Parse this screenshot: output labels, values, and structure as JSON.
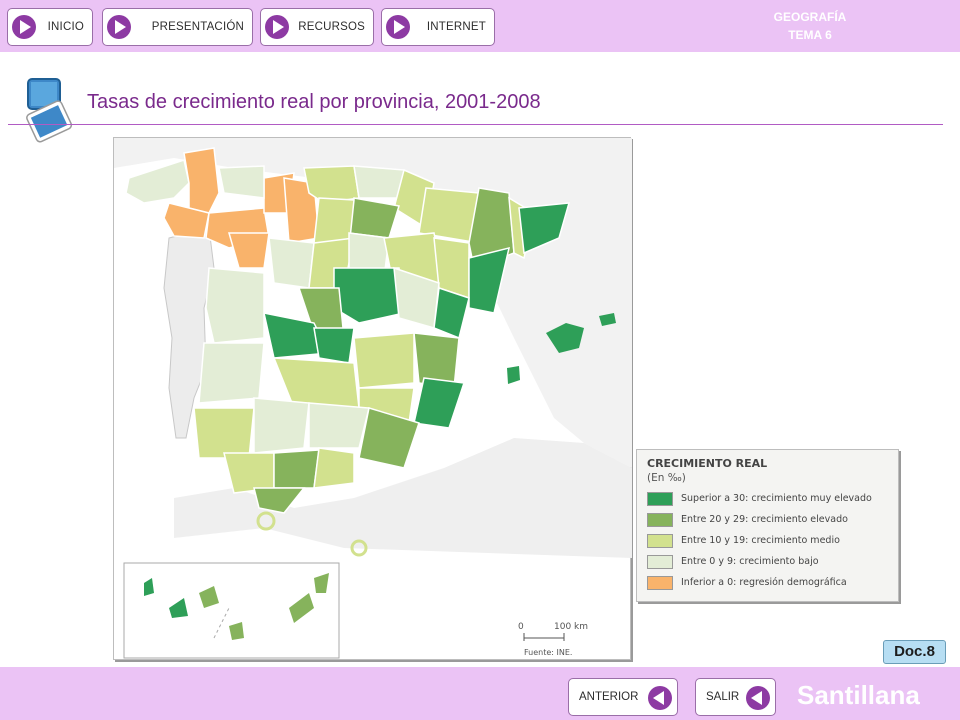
{
  "nav": {
    "items": [
      {
        "label": "INICIO"
      },
      {
        "label": "PRESENTACIÓN"
      },
      {
        "label": "RECURSOS"
      },
      {
        "label": "INTERNET"
      }
    ],
    "subject": "GEOGRAFÍA",
    "unit": "TEMA 6"
  },
  "main": {
    "title": "Tasas de crecimiento real por provincia, 2001-2008",
    "scale_zero": "0",
    "scale_hundred": "100 km",
    "source": "Fuente: INE.",
    "doc_label": "Doc.8"
  },
  "legend": {
    "title": "CRECIMIENTO REAL",
    "subtitle": "(En ‰)",
    "items": [
      {
        "label": "Superior a 30: crecimiento muy elevado",
        "color": "#2e9f58"
      },
      {
        "label": "Entre 20 y 29: crecimiento elevado",
        "color": "#86b35c"
      },
      {
        "label": "Entre 10 y 19: crecimiento medio",
        "color": "#d2e18e"
      },
      {
        "label": "Entre 0 y 9: crecimiento bajo",
        "color": "#e3edd6"
      },
      {
        "label": "Inferior a 0: regresión demográfica",
        "color": "#f9b36b"
      }
    ]
  },
  "footer": {
    "prev_label": "ANTERIOR",
    "exit_label": "SALIR",
    "brand": "Santillana"
  },
  "colors": {
    "bar": "#ebc3f5",
    "accent": "#7a2a8c",
    "play_icon": "#8d3aa3"
  }
}
